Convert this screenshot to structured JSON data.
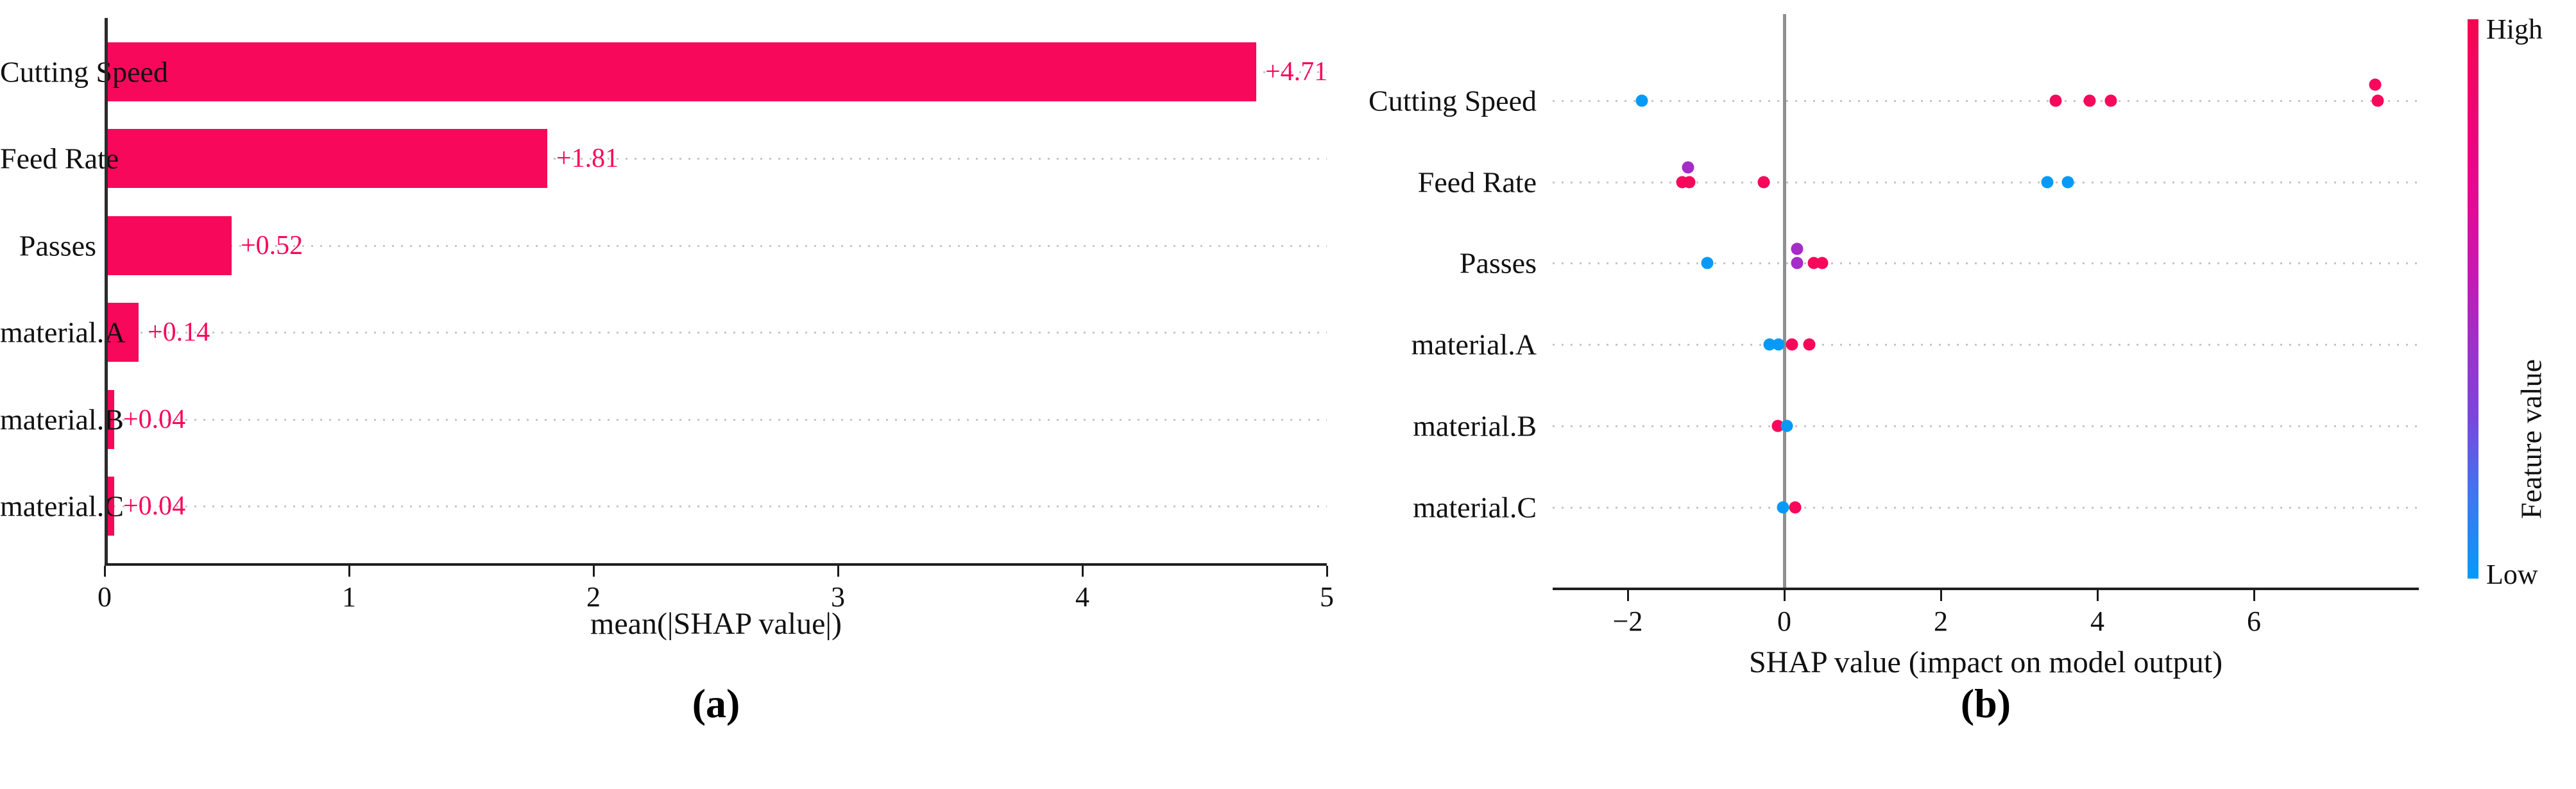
{
  "figure": {
    "panel_a_tag": "(a)",
    "panel_b_tag": "(b)"
  },
  "colors": {
    "high": "#f7085a",
    "mid": "#a52cc7",
    "low": "#069af8",
    "bar": "#f7085a",
    "bar_label": "#f7085a",
    "zero_line": "#8f8f8f",
    "axis": "#1f1f1f",
    "grid": "#c6c6c6"
  },
  "chart_data": [
    {
      "type": "bar",
      "panel": "a",
      "xlabel": "mean(|SHAP value|)",
      "categories": [
        "Cutting Speed",
        "Feed Rate",
        "Passes",
        "material.A",
        "material.B",
        "material.C"
      ],
      "values": [
        4.71,
        1.81,
        0.52,
        0.14,
        0.04,
        0.04
      ],
      "bar_labels": [
        "+4.71",
        "+1.81",
        "+0.52",
        "+0.14",
        "+0.04",
        "+0.04"
      ],
      "xticks": [
        0,
        1,
        2,
        3,
        4,
        5
      ],
      "xtick_labels": [
        "0",
        "1",
        "2",
        "3",
        "4",
        "5"
      ],
      "xlim": [
        0,
        5
      ],
      "grid": "dotted-horizontal",
      "legend": "none"
    },
    {
      "type": "scatter",
      "panel": "b",
      "xlabel": "SHAP value (impact on model output)",
      "categories": [
        "Cutting Speed",
        "Feed Rate",
        "Passes",
        "material.A",
        "material.B",
        "material.C"
      ],
      "xticks": [
        -2,
        0,
        2,
        4,
        6
      ],
      "xtick_labels": [
        "−2",
        "0",
        "2",
        "4",
        "6"
      ],
      "xlim": [
        -2.96,
        8.1
      ],
      "zero_reference_line": 0,
      "grid": "dotted-horizontal",
      "colorbar": {
        "label": "Feature value",
        "high": "High",
        "low": "Low"
      },
      "series": [
        {
          "feature": "Cutting Speed",
          "points": [
            {
              "x": -1.82,
              "level": "low"
            },
            {
              "x": 3.47,
              "level": "high"
            },
            {
              "x": 3.9,
              "level": "high"
            },
            {
              "x": 4.17,
              "level": "high"
            },
            {
              "x": 7.55,
              "level": "high",
              "dy": -25
            },
            {
              "x": 7.58,
              "level": "high"
            }
          ]
        },
        {
          "feature": "Feed Rate",
          "points": [
            {
              "x": -1.3,
              "level": "high"
            },
            {
              "x": -1.23,
              "level": "mid",
              "dy": -23
            },
            {
              "x": -1.21,
              "level": "high"
            },
            {
              "x": -0.26,
              "level": "high"
            },
            {
              "x": 3.36,
              "level": "low"
            },
            {
              "x": 3.62,
              "level": "low"
            }
          ]
        },
        {
          "feature": "Passes",
          "points": [
            {
              "x": -0.98,
              "level": "low"
            },
            {
              "x": 0.16,
              "level": "mid",
              "dy": -22
            },
            {
              "x": 0.16,
              "level": "mid"
            },
            {
              "x": 0.38,
              "level": "high"
            },
            {
              "x": 0.48,
              "level": "high"
            }
          ]
        },
        {
          "feature": "material.A",
          "points": [
            {
              "x": -0.19,
              "level": "low"
            },
            {
              "x": -0.07,
              "level": "low"
            },
            {
              "x": 0.1,
              "level": "high"
            },
            {
              "x": 0.32,
              "level": "high"
            }
          ]
        },
        {
          "feature": "material.B",
          "points": [
            {
              "x": -0.08,
              "level": "high"
            },
            {
              "x": 0.03,
              "level": "low"
            }
          ]
        },
        {
          "feature": "material.C",
          "points": [
            {
              "x": -0.02,
              "level": "low"
            },
            {
              "x": 0.14,
              "level": "high"
            }
          ]
        }
      ]
    }
  ]
}
